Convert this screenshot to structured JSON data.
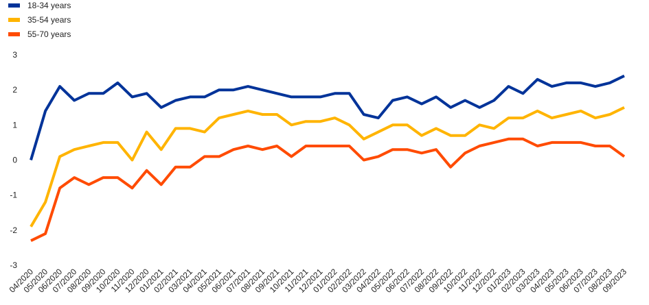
{
  "chart_data": {
    "type": "line",
    "title": "",
    "xlabel": "",
    "ylabel": "",
    "ylim": [
      -3,
      3
    ],
    "yticks": [
      "-3",
      "-2",
      "-1",
      "0",
      "1",
      "2",
      "3"
    ],
    "grid": false,
    "legend_position": "top-left",
    "categories": [
      "04/2020",
      "05/2020",
      "06/2020",
      "07/2020",
      "08/2020",
      "09/2020",
      "10/2020",
      "11/2020",
      "12/2020",
      "01/2021",
      "02/2021",
      "03/2021",
      "04/2021",
      "05/2021",
      "06/2021",
      "07/2021",
      "08/2021",
      "09/2021",
      "10/2021",
      "11/2021",
      "12/2021",
      "01/2022",
      "02/2022",
      "03/2022",
      "04/2022",
      "05/2022",
      "06/2022",
      "07/2022",
      "08/2022",
      "09/2022",
      "10/2022",
      "11/2022",
      "12/2022",
      "01/2023",
      "02/2023",
      "03/2023",
      "04/2023",
      "05/2023",
      "06/2023",
      "07/2023",
      "08/2023",
      "09/2023"
    ],
    "x": [
      "04/2020",
      "05/2020",
      "06/2020",
      "07/2020",
      "08/2020",
      "09/2020",
      "10/2020",
      "11/2020",
      "12/2020",
      "01/2021",
      "02/2021",
      "03/2021",
      "04/2021",
      "05/2021",
      "06/2021",
      "07/2021",
      "08/2021",
      "09/2021",
      "10/2021",
      "11/2021",
      "12/2021",
      "01/2022",
      "02/2022",
      "03/2022",
      "04/2022",
      "05/2022",
      "06/2022",
      "07/2022",
      "08/2022",
      "09/2022",
      "10/2022",
      "11/2022",
      "12/2022",
      "01/2023",
      "02/2023",
      "03/2023",
      "04/2023",
      "05/2023",
      "06/2023",
      "07/2023",
      "08/2023",
      "09/2023"
    ],
    "series": [
      {
        "name": "18-34  years",
        "color": "#003399",
        "values": [
          0.0,
          1.4,
          2.1,
          1.7,
          1.9,
          1.9,
          2.2,
          1.8,
          1.9,
          1.5,
          1.7,
          1.8,
          1.8,
          2.0,
          2.0,
          2.1,
          2.0,
          1.9,
          1.8,
          1.8,
          1.8,
          1.9,
          1.9,
          1.3,
          1.2,
          1.7,
          1.8,
          1.6,
          1.8,
          1.5,
          1.7,
          1.5,
          1.7,
          2.1,
          1.9,
          2.3,
          2.1,
          2.2,
          2.2,
          2.1,
          2.2,
          2.4
        ]
      },
      {
        "name": "35-54  years",
        "color": "#FFB400",
        "values": [
          -1.9,
          -1.2,
          0.1,
          0.3,
          0.4,
          0.5,
          0.5,
          0.0,
          0.8,
          0.3,
          0.9,
          0.9,
          0.8,
          1.2,
          1.3,
          1.4,
          1.3,
          1.3,
          1.0,
          1.1,
          1.1,
          1.2,
          1.0,
          0.6,
          0.8,
          1.0,
          1.0,
          0.7,
          0.9,
          0.7,
          0.7,
          1.0,
          0.9,
          1.2,
          1.2,
          1.4,
          1.2,
          1.3,
          1.4,
          1.2,
          1.3,
          1.5
        ]
      },
      {
        "name": "55-70  years",
        "color": "#FF4B00",
        "values": [
          -2.3,
          -2.1,
          -0.8,
          -0.5,
          -0.7,
          -0.5,
          -0.5,
          -0.8,
          -0.3,
          -0.7,
          -0.2,
          -0.2,
          0.1,
          0.1,
          0.3,
          0.4,
          0.3,
          0.4,
          0.1,
          0.4,
          0.4,
          0.4,
          0.4,
          0.0,
          0.1,
          0.3,
          0.3,
          0.2,
          0.3,
          -0.2,
          0.2,
          0.4,
          0.5,
          0.6,
          0.6,
          0.4,
          0.5,
          0.5,
          0.5,
          0.4,
          0.4,
          0.1
        ]
      }
    ]
  }
}
